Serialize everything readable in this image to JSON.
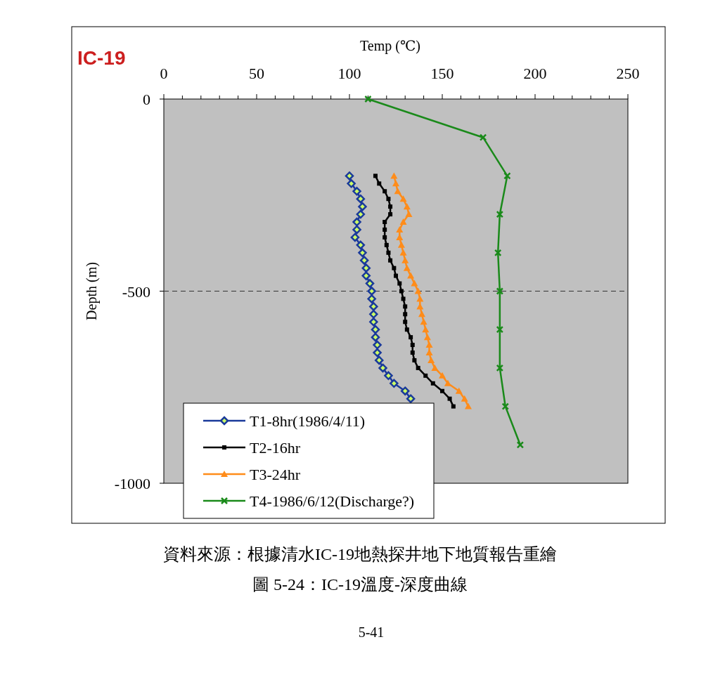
{
  "chart_data": {
    "type": "line",
    "xlabel": "Temp (℃)",
    "ylabel": "Depth (m)",
    "xlim": [
      0,
      250
    ],
    "ylim": [
      -1000,
      0
    ],
    "xticks": [
      0,
      {
        "value": 10,
        "label": null
      },
      {
        "value": 20,
        "label": null
      },
      {
        "value": 30,
        "label": null
      },
      {
        "value": 40,
        "label": null
      },
      50,
      {
        "value": 60,
        "label": null
      },
      {
        "value": 70,
        "label": null
      },
      {
        "value": 80,
        "label": null
      },
      {
        "value": 90,
        "label": null
      },
      100,
      {
        "value": 110,
        "label": null
      },
      {
        "value": 120,
        "label": null
      },
      {
        "value": 130,
        "label": null
      },
      {
        "value": 140,
        "label": null
      },
      150,
      {
        "value": 160,
        "label": null
      },
      {
        "value": 170,
        "label": null
      },
      {
        "value": 180,
        "label": null
      },
      {
        "value": 190,
        "label": null
      },
      200,
      {
        "value": 210,
        "label": null
      },
      {
        "value": 220,
        "label": null
      },
      {
        "value": 230,
        "label": null
      },
      {
        "value": 240,
        "label": null
      },
      250
    ],
    "yticks": [
      0,
      -500,
      -1000
    ],
    "grid": false,
    "legend": "bottom left",
    "line_style": "solid",
    "ref_lines": [
      {
        "axis": "y",
        "value": -500,
        "line_style": "dashed",
        "color": "#333333"
      }
    ],
    "annotations": [
      "IC-19",
      "資料來源：根據清水IC-19地熱探井地下地質報告重繪",
      "圖 5-24：IC-19溫度-深度曲線",
      "5-41"
    ],
    "series": [
      {
        "name": "T1-8hr(1986/4/11)",
        "color": "#1a3a9a",
        "marker": "diamond",
        "x": [
          100,
          101,
          104,
          106,
          107,
          106,
          104,
          104,
          103,
          106,
          107,
          108,
          109,
          109,
          111,
          112,
          112,
          113,
          113,
          113,
          114,
          114,
          115,
          115,
          116,
          118,
          121,
          124,
          130,
          133
        ],
        "values": [
          -200,
          -220,
          -240,
          -260,
          -280,
          -300,
          -320,
          -340,
          -360,
          -380,
          -400,
          -420,
          -440,
          -460,
          -480,
          -500,
          -520,
          -540,
          -560,
          -580,
          -600,
          -620,
          -640,
          -660,
          -680,
          -700,
          -720,
          -740,
          -760,
          -780
        ]
      },
      {
        "name": "T2-16hr",
        "color": "#000000",
        "marker": "square",
        "x": [
          114,
          116,
          119,
          121,
          122,
          122,
          119,
          119,
          119,
          120,
          121,
          122,
          124,
          125,
          127,
          128,
          129,
          130,
          130,
          130,
          131,
          133,
          134,
          134,
          135,
          137,
          141,
          145,
          150,
          154,
          156
        ],
        "values": [
          -200,
          -220,
          -240,
          -260,
          -280,
          -300,
          -320,
          -340,
          -360,
          -380,
          -400,
          -420,
          -440,
          -460,
          -480,
          -500,
          -520,
          -540,
          -560,
          -580,
          -600,
          -620,
          -640,
          -660,
          -680,
          -700,
          -720,
          -740,
          -760,
          -780,
          -800
        ]
      },
      {
        "name": "T3-24hr",
        "color": "#ff8c1a",
        "marker": "triangle",
        "x": [
          124,
          125,
          126,
          129,
          131,
          132,
          129,
          127,
          127,
          128,
          129,
          130,
          131,
          133,
          135,
          137,
          138,
          138,
          139,
          140,
          141,
          142,
          143,
          143,
          144,
          146,
          150,
          153,
          159,
          162,
          164
        ],
        "values": [
          -200,
          -220,
          -240,
          -260,
          -280,
          -300,
          -320,
          -340,
          -360,
          -380,
          -400,
          -420,
          -440,
          -460,
          -480,
          -500,
          -520,
          -540,
          -560,
          -580,
          -600,
          -620,
          -640,
          -660,
          -680,
          -700,
          -720,
          -740,
          -760,
          -780,
          -800
        ]
      },
      {
        "name": "T4-1986/6/12(Discharge?)",
        "color": "#1a8a1a",
        "marker": "cross",
        "x": [
          110,
          172,
          185,
          181,
          180,
          181,
          181,
          181,
          184,
          192
        ],
        "values": [
          0,
          -100,
          -200,
          -300,
          -400,
          -500,
          -600,
          -700,
          -800,
          -900
        ]
      }
    ]
  }
}
